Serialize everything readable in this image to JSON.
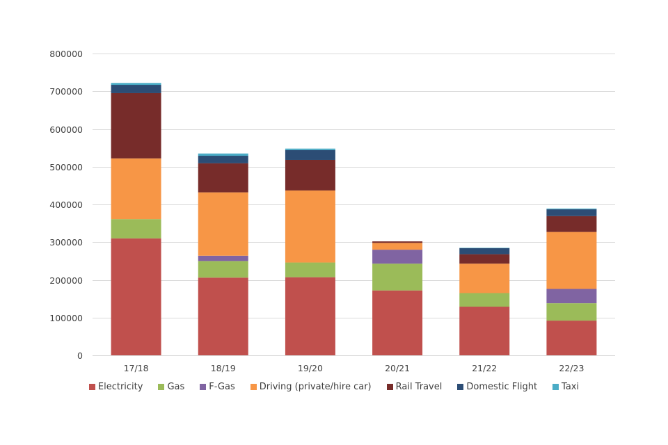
{
  "chart_data": {
    "type": "bar",
    "stacked": true,
    "title": "",
    "xlabel": "",
    "ylabel": "",
    "ylim": [
      0,
      800000
    ],
    "yticks": [
      0,
      100000,
      200000,
      300000,
      400000,
      500000,
      600000,
      700000,
      800000
    ],
    "ytick_labels": [
      "0",
      "100000",
      "200000",
      "300000",
      "400000",
      "500000",
      "600000",
      "700000",
      "800000"
    ],
    "grid": true,
    "legend_position": "bottom",
    "categories": [
      "17/18",
      "18/19",
      "19/20",
      "20/21",
      "21/22",
      "22/23"
    ],
    "series": [
      {
        "name": "Electricity",
        "color": "#C0504D",
        "values": [
          310000,
          206000,
          207000,
          172000,
          129000,
          92000
        ]
      },
      {
        "name": "Gas",
        "color": "#9BBB59",
        "values": [
          51000,
          44000,
          39000,
          71000,
          36000,
          46000
        ]
      },
      {
        "name": "F-Gas",
        "color": "#8064A2",
        "values": [
          0,
          14000,
          0,
          37000,
          0,
          38000
        ]
      },
      {
        "name": "Driving (private/hire car)",
        "color": "#F79646",
        "values": [
          161000,
          168000,
          191000,
          18000,
          78000,
          151000
        ]
      },
      {
        "name": "Rail Travel",
        "color": "#772C2A",
        "values": [
          173000,
          77000,
          81000,
          4000,
          25000,
          42000
        ]
      },
      {
        "name": "Domestic Flight",
        "color": "#2C4D75",
        "values": [
          22000,
          20000,
          26000,
          0,
          16000,
          18000
        ]
      },
      {
        "name": "Taxi",
        "color": "#4BACC6",
        "values": [
          5000,
          6000,
          4000,
          0,
          1000,
          2000
        ]
      }
    ]
  }
}
